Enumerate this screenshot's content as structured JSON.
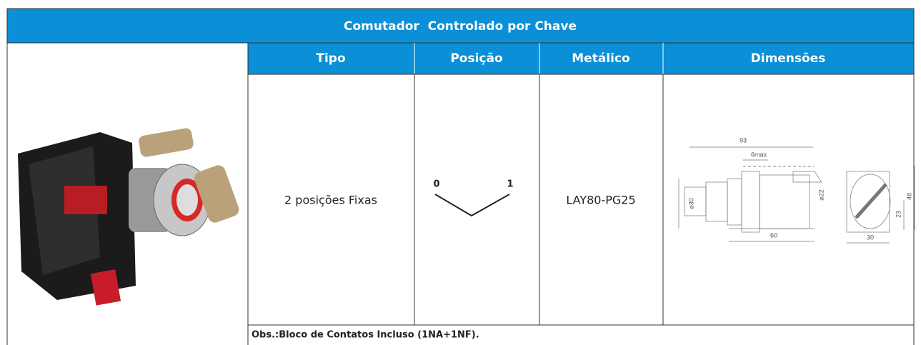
{
  "header": {
    "title": "Comutador  Controlado por Chave"
  },
  "table": {
    "columns": [
      "Tipo",
      "Posição",
      "Metálico",
      "Dimensões"
    ],
    "rows": [
      [
        "2 posições Fixas",
        {
          "positions": [
            "0",
            "1"
          ]
        },
        "LAY80-PG25",
        {
          "labels": [
            "93",
            "6max",
            "⌀30",
            "⌀22",
            "60",
            "48",
            "23",
            "30"
          ]
        }
      ]
    ]
  },
  "note": "Obs.:Bloco de Contatos Incluso (1NA+1NF)."
}
